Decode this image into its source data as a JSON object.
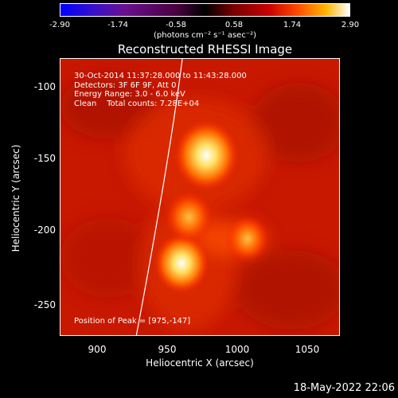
{
  "colorbar": {
    "ticks": [
      "-2.90",
      "-1.74",
      "-0.58",
      "0.58",
      "1.74",
      "2.90"
    ],
    "unit_label": "(photons cm⁻² s⁻¹ asec⁻²)"
  },
  "plot": {
    "title": "Reconstructed RHESSI Image",
    "annotations": {
      "time_range": "30-Oct-2014 11:37:28.000 to 11:43:28.000",
      "detectors": "Detectors: 3F 6F 9F, Att 0",
      "energy_range": "Energy Range: 3.0 - 6.0 keV",
      "algorithm_counts": "Clean    Total counts: 7.28E+04",
      "peak_position": "Position of Peak = [975,-147]"
    },
    "x_axis": {
      "label": "Heliocentric X (arcsec)",
      "ticks": [
        "900",
        "950",
        "1000",
        "1050"
      ]
    },
    "y_axis": {
      "label": "Heliocentric Y (arcsec)",
      "ticks": [
        "-100",
        "-150",
        "-200",
        "-250"
      ]
    }
  },
  "chart_data": {
    "type": "heatmap",
    "title": "Reconstructed RHESSI Image",
    "xlabel": "Heliocentric X (arcsec)",
    "ylabel": "Heliocentric Y (arcsec)",
    "xlim": [
      875,
      1067
    ],
    "ylim": [
      -273,
      -80
    ],
    "colorscale": {
      "min": -2.9,
      "max": 2.9
    },
    "sources": [
      {
        "x": 975,
        "y": -147,
        "intensity": 2.9
      },
      {
        "x": 958,
        "y": -222,
        "intensity": 2.3
      },
      {
        "x": 963,
        "y": -190,
        "intensity": 1.8
      },
      {
        "x": 1003,
        "y": -205,
        "intensity": 1.5
      }
    ]
  },
  "footer": {
    "timestamp": "18-May-2022 22:06"
  }
}
